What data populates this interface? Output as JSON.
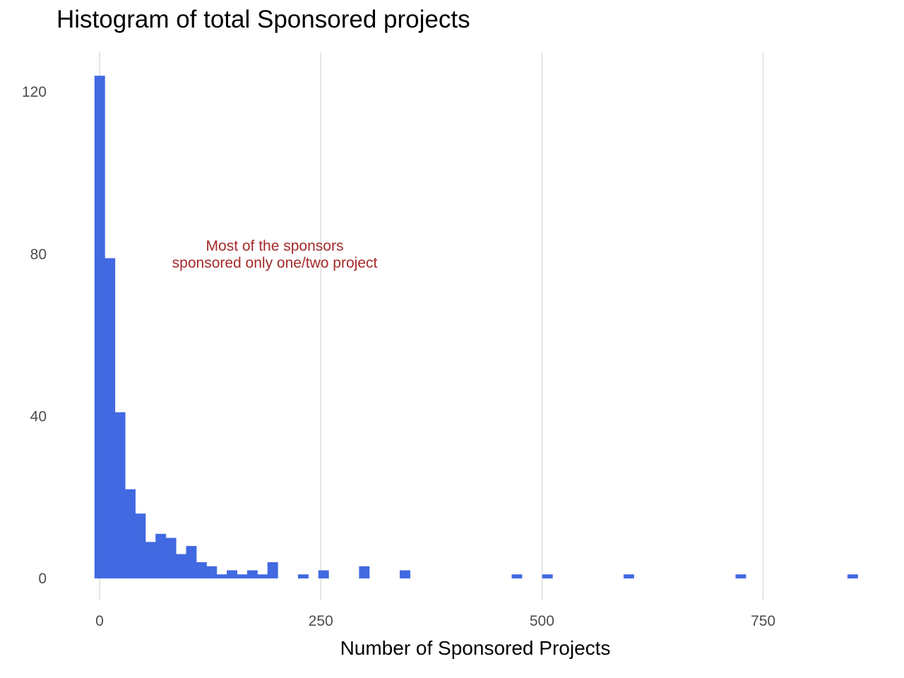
{
  "chart_data": {
    "type": "bar",
    "title": "Histogram of total Sponsored projects",
    "xlabel": "Number of Sponsored Projects",
    "ylabel": "",
    "x_ticks": [
      0,
      250,
      500,
      750
    ],
    "y_ticks": [
      0,
      40,
      80,
      120
    ],
    "xlim": [
      -20,
      855
    ],
    "ylim": [
      -4,
      130
    ],
    "bin_width": 11.5,
    "bar_color": "#4169e1",
    "grid": "vertical-major-only",
    "annotation": {
      "lines": [
        "Most of the sponsors",
        "sponsored only one/two project"
      ],
      "x": 200,
      "y": 80,
      "color": "#a52a2a"
    },
    "bins": [
      {
        "x": 0,
        "count": 124
      },
      {
        "x": 11.5,
        "count": 79
      },
      {
        "x": 23,
        "count": 41
      },
      {
        "x": 34.5,
        "count": 22
      },
      {
        "x": 46,
        "count": 16
      },
      {
        "x": 57.5,
        "count": 9
      },
      {
        "x": 69,
        "count": 11
      },
      {
        "x": 80.5,
        "count": 10
      },
      {
        "x": 92,
        "count": 6
      },
      {
        "x": 103.5,
        "count": 8
      },
      {
        "x": 115,
        "count": 4
      },
      {
        "x": 126.5,
        "count": 3
      },
      {
        "x": 138,
        "count": 1
      },
      {
        "x": 149.5,
        "count": 2
      },
      {
        "x": 161,
        "count": 1
      },
      {
        "x": 172.5,
        "count": 2
      },
      {
        "x": 184,
        "count": 1
      },
      {
        "x": 195.5,
        "count": 4
      },
      {
        "x": 230,
        "count": 1
      },
      {
        "x": 253,
        "count": 2
      },
      {
        "x": 299,
        "count": 3
      },
      {
        "x": 345,
        "count": 2
      },
      {
        "x": 471.5,
        "count": 1
      },
      {
        "x": 506,
        "count": 1
      },
      {
        "x": 598,
        "count": 1
      },
      {
        "x": 724.5,
        "count": 1
      },
      {
        "x": 851,
        "count": 1
      }
    ]
  }
}
